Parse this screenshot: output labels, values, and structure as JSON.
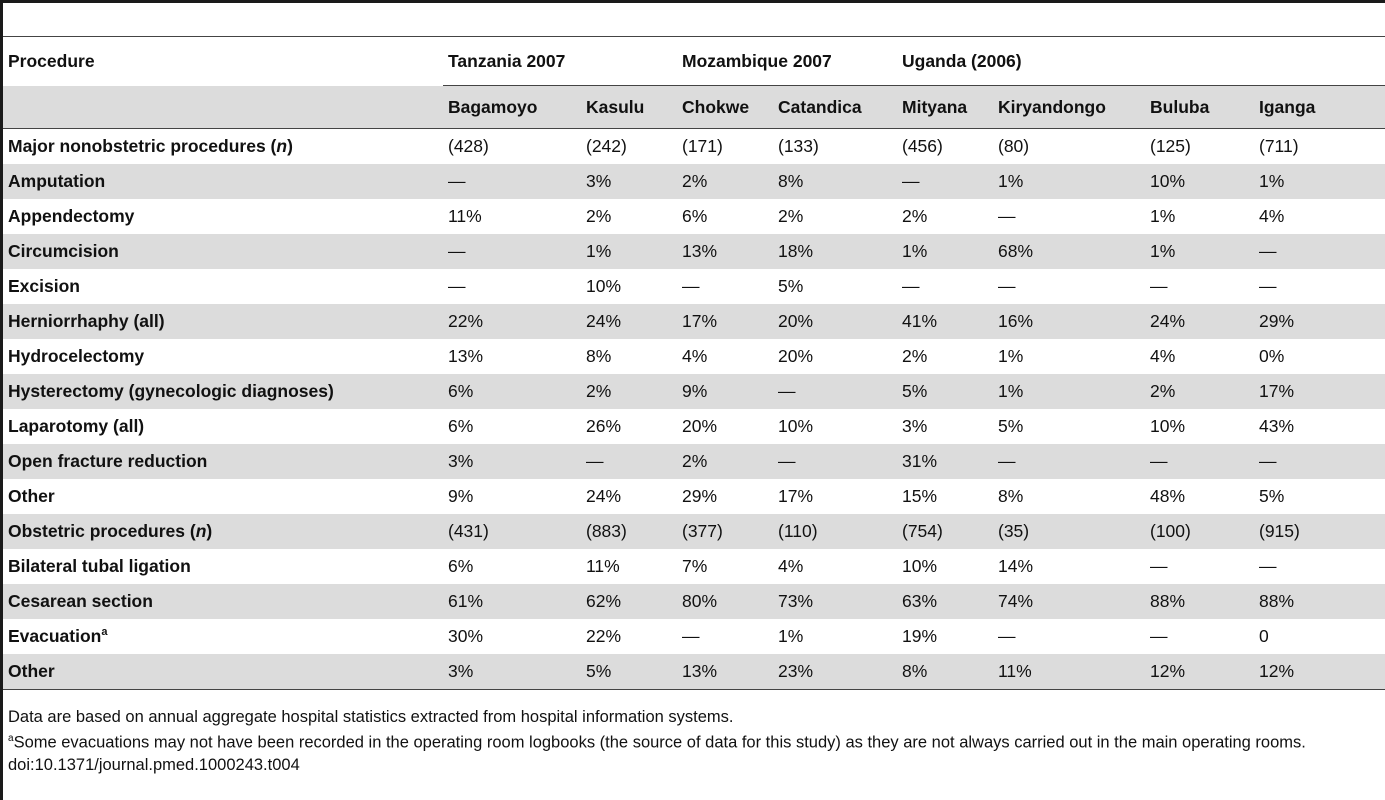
{
  "table": {
    "header_label": "Procedure",
    "groups": [
      {
        "label": "Tanzania 2007",
        "columns": [
          "Bagamoyo",
          "Kasulu"
        ]
      },
      {
        "label": "Mozambique 2007",
        "columns": [
          "Chokwe",
          "Catandica"
        ]
      },
      {
        "label": "Uganda (2006)",
        "columns": [
          "Mityana",
          "Kiryandongo",
          "Buluba",
          "Iganga"
        ]
      }
    ],
    "rows": [
      {
        "label": "Major nonobstetric procedures",
        "n": "n",
        "values": [
          "(428)",
          "(242)",
          "(171)",
          "(133)",
          "(456)",
          "(80)",
          "(125)",
          "(711)"
        ]
      },
      {
        "label": "Amputation",
        "values": [
          "—",
          "3%",
          "2%",
          "8%",
          "—",
          "1%",
          "10%",
          "1%"
        ]
      },
      {
        "label": "Appendectomy",
        "values": [
          "11%",
          "2%",
          "6%",
          "2%",
          "2%",
          "—",
          "1%",
          "4%"
        ]
      },
      {
        "label": "Circumcision",
        "values": [
          "—",
          "1%",
          "13%",
          "18%",
          "1%",
          "68%",
          "1%",
          "—"
        ]
      },
      {
        "label": "Excision",
        "values": [
          "—",
          "10%",
          "—",
          "5%",
          "—",
          "—",
          "—",
          "—"
        ]
      },
      {
        "label": "Herniorrhaphy (all)",
        "values": [
          "22%",
          "24%",
          "17%",
          "20%",
          "41%",
          "16%",
          "24%",
          "29%"
        ]
      },
      {
        "label": "Hydrocelectomy",
        "values": [
          "13%",
          "8%",
          "4%",
          "20%",
          "2%",
          "1%",
          "4%",
          "0%"
        ]
      },
      {
        "label": "Hysterectomy (gynecologic diagnoses)",
        "values": [
          "6%",
          "2%",
          "9%",
          "—",
          "5%",
          "1%",
          "2%",
          "17%"
        ]
      },
      {
        "label": "Laparotomy (all)",
        "values": [
          "6%",
          "26%",
          "20%",
          "10%",
          "3%",
          "5%",
          "10%",
          "43%"
        ]
      },
      {
        "label": "Open fracture reduction",
        "values": [
          "3%",
          "—",
          "2%",
          "—",
          "31%",
          "—",
          "—",
          "—"
        ]
      },
      {
        "label": "Other",
        "values": [
          "9%",
          "24%",
          "29%",
          "17%",
          "15%",
          "8%",
          "48%",
          "5%"
        ]
      },
      {
        "label": "Obstetric procedures",
        "n": "n",
        "values": [
          "(431)",
          "(883)",
          "(377)",
          "(110)",
          "(754)",
          "(35)",
          "(100)",
          "(915)"
        ]
      },
      {
        "label": "Bilateral tubal ligation",
        "values": [
          "6%",
          "11%",
          "7%",
          "4%",
          "10%",
          "14%",
          "—",
          "—"
        ]
      },
      {
        "label": "Cesarean section",
        "values": [
          "61%",
          "62%",
          "80%",
          "73%",
          "63%",
          "74%",
          "88%",
          "88%"
        ]
      },
      {
        "label": "Evacuation",
        "sup": "a",
        "values": [
          "30%",
          "22%",
          "—",
          "1%",
          "19%",
          "—",
          "—",
          "0"
        ]
      },
      {
        "label": "Other",
        "values": [
          "3%",
          "5%",
          "13%",
          "23%",
          "8%",
          "11%",
          "12%",
          "12%"
        ]
      }
    ]
  },
  "footnotes": {
    "note1": "Data are based on annual aggregate hospital statistics extracted from hospital information systems.",
    "note2_marker": "a",
    "note2": "Some evacuations may not have been recorded in the operating room logbooks (the source of data for this study) as they are not always carried out in the main operating rooms.",
    "doi": "doi:10.1371/journal.pmed.1000243.t004"
  }
}
